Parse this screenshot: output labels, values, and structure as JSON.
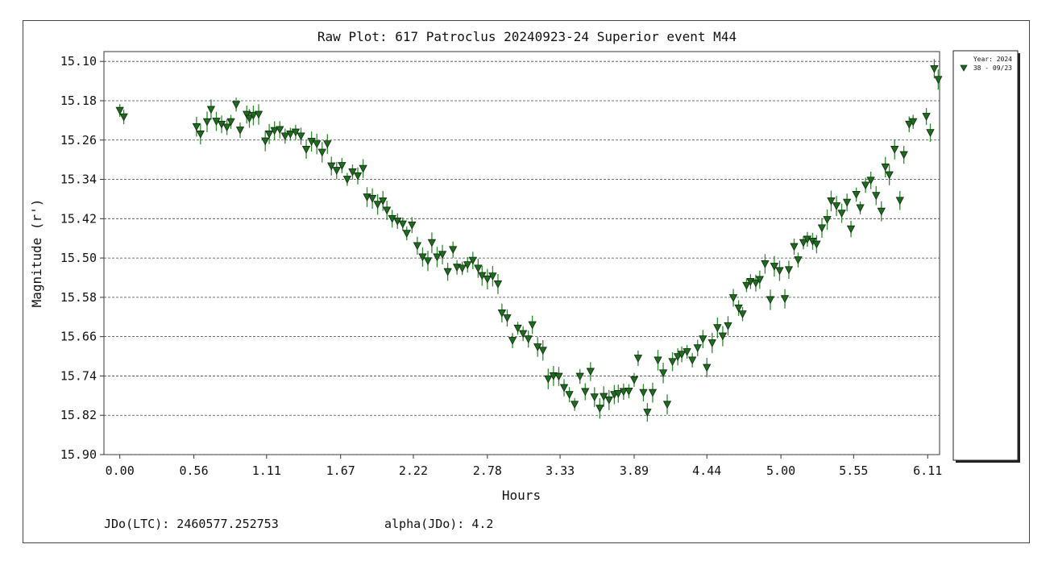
{
  "chart_data": {
    "type": "scatter",
    "title": "Raw Plot: 617 Patroclus 20240923-24 Superior event M44",
    "xlabel": "Hours",
    "ylabel": "Magnitude (r')",
    "xlim": [
      -0.12,
      6.2
    ],
    "ylim": [
      15.9,
      15.08
    ],
    "y_inverted": true,
    "grid": "horizontal-dashed",
    "legend_position": "right",
    "x_ticks": [
      "0.00",
      "0.56",
      "1.11",
      "1.67",
      "2.22",
      "2.78",
      "3.33",
      "3.89",
      "4.44",
      "5.00",
      "5.55",
      "6.11"
    ],
    "y_ticks": [
      "15.10",
      "15.18",
      "15.26",
      "15.34",
      "15.42",
      "15.50",
      "15.58",
      "15.66",
      "15.74",
      "15.82",
      "15.90"
    ],
    "legend": {
      "title": "Year: 2024",
      "entry": "38 - 09/23"
    },
    "series": [
      {
        "name": "38 - 09/23",
        "marker": "triangle-down",
        "color": "#1f6b1f",
        "points": [
          [
            0.0,
            15.2
          ],
          [
            0.03,
            15.213
          ],
          [
            0.58,
            15.233
          ],
          [
            0.61,
            15.248
          ],
          [
            0.66,
            15.223
          ],
          [
            0.69,
            15.198
          ],
          [
            0.73,
            15.222
          ],
          [
            0.77,
            15.228
          ],
          [
            0.81,
            15.234
          ],
          [
            0.84,
            15.223
          ],
          [
            0.88,
            15.188
          ],
          [
            0.91,
            15.24
          ],
          [
            0.96,
            15.208
          ],
          [
            0.98,
            15.216
          ],
          [
            1.01,
            15.21
          ],
          [
            1.05,
            15.208
          ],
          [
            1.1,
            15.262
          ],
          [
            1.13,
            15.248
          ],
          [
            1.17,
            15.241
          ],
          [
            1.21,
            15.239
          ],
          [
            1.25,
            15.252
          ],
          [
            1.29,
            15.248
          ],
          [
            1.33,
            15.244
          ],
          [
            1.37,
            15.252
          ],
          [
            1.41,
            15.279
          ],
          [
            1.45,
            15.263
          ],
          [
            1.49,
            15.268
          ],
          [
            1.53,
            15.285
          ],
          [
            1.57,
            15.268
          ],
          [
            1.6,
            15.313
          ],
          [
            1.64,
            15.322
          ],
          [
            1.68,
            15.312
          ],
          [
            1.72,
            15.34
          ],
          [
            1.76,
            15.325
          ],
          [
            1.8,
            15.333
          ],
          [
            1.84,
            15.318
          ],
          [
            1.87,
            15.376
          ],
          [
            1.91,
            15.379
          ],
          [
            1.95,
            15.391
          ],
          [
            1.99,
            15.384
          ],
          [
            2.02,
            15.403
          ],
          [
            2.06,
            15.42
          ],
          [
            2.1,
            15.425
          ],
          [
            2.14,
            15.431
          ],
          [
            2.17,
            15.45
          ],
          [
            2.21,
            15.433
          ],
          [
            2.25,
            15.475
          ],
          [
            2.29,
            15.498
          ],
          [
            2.33,
            15.506
          ],
          [
            2.36,
            15.469
          ],
          [
            2.4,
            15.498
          ],
          [
            2.44,
            15.493
          ],
          [
            2.48,
            15.528
          ],
          [
            2.52,
            15.483
          ],
          [
            2.55,
            15.519
          ],
          [
            2.59,
            15.521
          ],
          [
            2.63,
            15.514
          ],
          [
            2.67,
            15.505
          ],
          [
            2.71,
            15.521
          ],
          [
            2.74,
            15.536
          ],
          [
            2.78,
            15.543
          ],
          [
            2.82,
            15.537
          ],
          [
            2.86,
            15.553
          ],
          [
            2.89,
            15.612
          ],
          [
            2.93,
            15.622
          ],
          [
            2.97,
            15.668
          ],
          [
            3.01,
            15.643
          ],
          [
            3.05,
            15.654
          ],
          [
            3.09,
            15.665
          ],
          [
            3.12,
            15.636
          ],
          [
            3.16,
            15.681
          ],
          [
            3.2,
            15.688
          ],
          [
            3.24,
            15.746
          ],
          [
            3.28,
            15.74
          ],
          [
            3.32,
            15.741
          ],
          [
            3.36,
            15.764
          ],
          [
            3.4,
            15.778
          ],
          [
            3.44,
            15.798
          ],
          [
            3.48,
            15.741
          ],
          [
            3.52,
            15.772
          ],
          [
            3.56,
            15.731
          ],
          [
            3.59,
            15.783
          ],
          [
            3.63,
            15.806
          ],
          [
            3.66,
            15.782
          ],
          [
            3.7,
            15.789
          ],
          [
            3.74,
            15.778
          ],
          [
            3.77,
            15.776
          ],
          [
            3.81,
            15.772
          ],
          [
            3.85,
            15.771
          ],
          [
            3.89,
            15.748
          ],
          [
            3.92,
            15.704
          ],
          [
            3.96,
            15.774
          ],
          [
            3.99,
            15.814
          ],
          [
            4.03,
            15.774
          ],
          [
            4.07,
            15.708
          ],
          [
            4.11,
            15.734
          ],
          [
            4.14,
            15.798
          ],
          [
            4.18,
            15.711
          ],
          [
            4.22,
            15.701
          ],
          [
            4.25,
            15.696
          ],
          [
            4.29,
            15.691
          ],
          [
            4.33,
            15.708
          ],
          [
            4.37,
            15.683
          ],
          [
            4.41,
            15.665
          ],
          [
            4.44,
            15.723
          ],
          [
            4.48,
            15.673
          ],
          [
            4.52,
            15.642
          ],
          [
            4.56,
            15.659
          ],
          [
            4.6,
            15.638
          ],
          [
            4.64,
            15.581
          ],
          [
            4.68,
            15.602
          ],
          [
            4.71,
            15.614
          ],
          [
            4.74,
            15.556
          ],
          [
            4.77,
            15.548
          ],
          [
            4.81,
            15.551
          ],
          [
            4.84,
            15.544
          ],
          [
            4.88,
            15.512
          ],
          [
            4.92,
            15.585
          ],
          [
            4.95,
            15.517
          ],
          [
            4.99,
            15.526
          ],
          [
            5.03,
            15.583
          ],
          [
            5.06,
            15.524
          ],
          [
            5.1,
            15.477
          ],
          [
            5.13,
            15.504
          ],
          [
            5.17,
            15.469
          ],
          [
            5.2,
            15.462
          ],
          [
            5.24,
            15.466
          ],
          [
            5.27,
            15.472
          ],
          [
            5.31,
            15.439
          ],
          [
            5.35,
            15.422
          ],
          [
            5.38,
            15.384
          ],
          [
            5.42,
            15.394
          ],
          [
            5.46,
            15.409
          ],
          [
            5.5,
            15.387
          ],
          [
            5.53,
            15.441
          ],
          [
            5.57,
            15.371
          ],
          [
            5.6,
            15.398
          ],
          [
            5.64,
            15.352
          ],
          [
            5.68,
            15.342
          ],
          [
            5.72,
            15.373
          ],
          [
            5.76,
            15.405
          ],
          [
            5.79,
            15.315
          ],
          [
            5.82,
            15.331
          ],
          [
            5.86,
            15.279
          ],
          [
            5.9,
            15.383
          ],
          [
            5.93,
            15.29
          ],
          [
            5.97,
            15.228
          ],
          [
            6.0,
            15.223
          ],
          [
            6.1,
            15.212
          ],
          [
            6.13,
            15.245
          ],
          [
            6.16,
            15.115
          ],
          [
            6.19,
            15.137
          ]
        ]
      }
    ]
  },
  "footer": {
    "jdo_label": "JDo(LTC): 2460577.252753",
    "alpha_label": "alpha(JDo): 4.2"
  }
}
